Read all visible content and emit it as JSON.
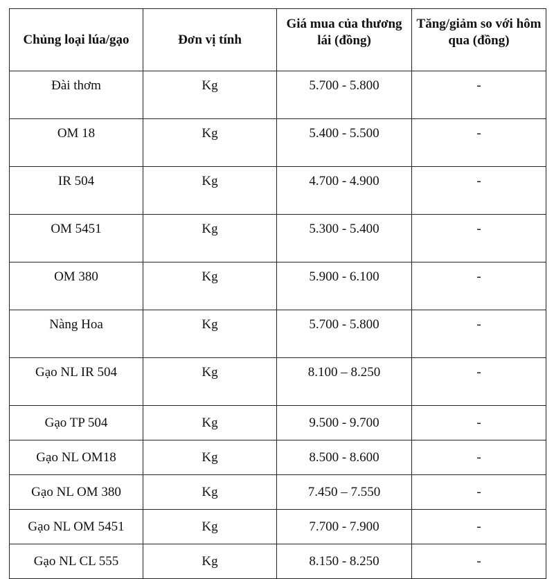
{
  "table": {
    "headers": [
      "Chủng loại lúa/gạo",
      "Đơn vị tính",
      "Giá mua của thương lái (đồng)",
      "Tăng/giảm so với hôm qua (đồng)"
    ],
    "rows": [
      [
        "Đài thơm",
        "Kg",
        "5.700 - 5.800",
        "-"
      ],
      [
        "OM 18",
        "Kg",
        "5.400 - 5.500",
        "-"
      ],
      [
        "IR 504",
        "Kg",
        "4.700 - 4.900",
        "-"
      ],
      [
        "OM 5451",
        "Kg",
        "5.300 - 5.400",
        "-"
      ],
      [
        "OM 380",
        "Kg",
        "5.900 - 6.100",
        "-"
      ],
      [
        "Nàng Hoa",
        "Kg",
        "5.700 - 5.800",
        "-"
      ],
      [
        "Gạo NL IR 504",
        "Kg",
        "8.100 – 8.250",
        "-"
      ],
      [
        "Gạo TP 504",
        "Kg",
        "9.500 - 9.700",
        "-"
      ],
      [
        "Gạo NL OM18",
        "Kg",
        "8.500 - 8.600",
        "-"
      ],
      [
        "Gạo NL OM 380",
        "Kg",
        "7.450 – 7.550",
        "-"
      ],
      [
        "Gạo NL OM 5451",
        "Kg",
        "7.700 - 7.900",
        "-"
      ],
      [
        "Gạo NL CL 555",
        "Kg",
        "8.150 - 8.250",
        "-"
      ]
    ]
  }
}
